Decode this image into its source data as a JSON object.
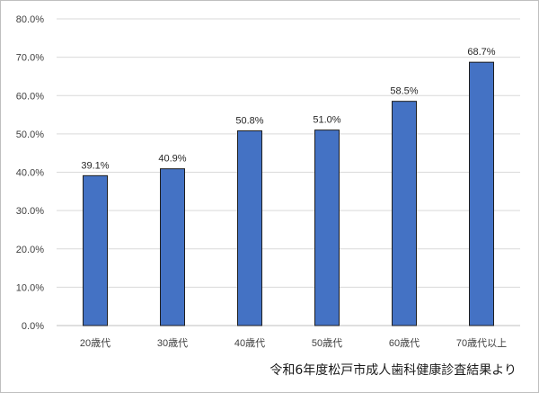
{
  "chart_data": {
    "type": "bar",
    "categories": [
      "20歳代",
      "30歳代",
      "40歳代",
      "50歳代",
      "60歳代",
      "70歳代以上"
    ],
    "values": [
      39.1,
      40.9,
      50.8,
      51.0,
      58.5,
      68.7
    ],
    "data_labels": [
      "39.1%",
      "40.9%",
      "50.8%",
      "51.0%",
      "58.5%",
      "68.7%"
    ],
    "y_ticks": [
      "0.0%",
      "10.0%",
      "20.0%",
      "30.0%",
      "40.0%",
      "50.0%",
      "60.0%",
      "70.0%",
      "80.0%"
    ],
    "ylim": [
      0,
      80
    ],
    "grid": true,
    "legend": "none",
    "bar_color": "#4472c4",
    "bar_edge_color": "#1f1f1f"
  },
  "source_note": "令和6年度松戸市成人歯科健康診査結果より"
}
